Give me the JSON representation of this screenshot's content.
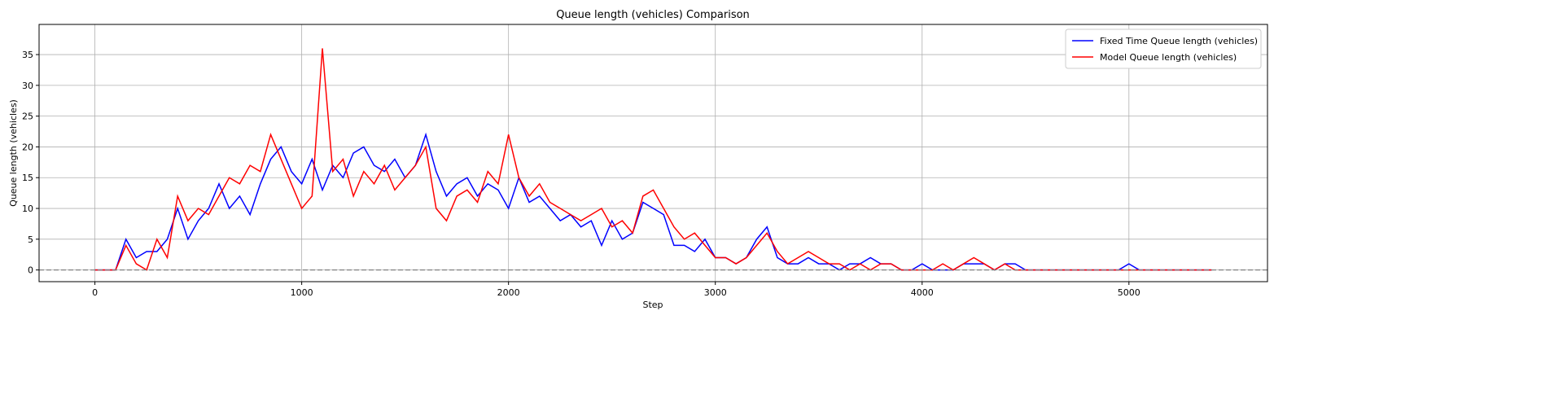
{
  "chart_data": {
    "type": "line",
    "title": "Queue length (vehicles) Comparison",
    "xlabel": "Step",
    "ylabel": "Queue length (vehicles)",
    "x": [
      0,
      50,
      100,
      150,
      200,
      250,
      300,
      350,
      400,
      450,
      500,
      550,
      600,
      650,
      700,
      750,
      800,
      850,
      900,
      950,
      1000,
      1050,
      1100,
      1150,
      1200,
      1250,
      1300,
      1350,
      1400,
      1450,
      1500,
      1550,
      1600,
      1650,
      1700,
      1750,
      1800,
      1850,
      1900,
      1950,
      2000,
      2050,
      2100,
      2150,
      2200,
      2250,
      2300,
      2350,
      2400,
      2450,
      2500,
      2550,
      2600,
      2650,
      2700,
      2750,
      2800,
      2850,
      2900,
      2950,
      3000,
      3050,
      3100,
      3150,
      3200,
      3250,
      3300,
      3350,
      3400,
      3450,
      3500,
      3550,
      3600,
      3650,
      3700,
      3750,
      3800,
      3850,
      3900,
      3950,
      4000,
      4050,
      4100,
      4150,
      4200,
      4250,
      4300,
      4350,
      4400,
      4450,
      4500,
      4550,
      4600,
      4650,
      4700,
      4750,
      4800,
      4850,
      4900,
      4950,
      5000,
      5050,
      5100,
      5150,
      5200,
      5250,
      5300,
      5350,
      5400
    ],
    "series": [
      {
        "name": "Fixed Time Queue length (vehicles)",
        "color": "#0000ff",
        "values": [
          0,
          0,
          0,
          5,
          2,
          3,
          3,
          5,
          10,
          5,
          8,
          10,
          14,
          10,
          12,
          9,
          14,
          18,
          20,
          16,
          14,
          18,
          13,
          17,
          15,
          19,
          20,
          17,
          16,
          18,
          15,
          17,
          22,
          16,
          12,
          14,
          15,
          12,
          14,
          13,
          10,
          15,
          11,
          12,
          10,
          8,
          9,
          7,
          8,
          4,
          8,
          5,
          6,
          11,
          10,
          9,
          4,
          4,
          3,
          5,
          2,
          2,
          1,
          2,
          5,
          7,
          2,
          1,
          1,
          2,
          1,
          1,
          0,
          1,
          1,
          2,
          1,
          1,
          0,
          0,
          1,
          0,
          0,
          0,
          1,
          1,
          1,
          0,
          1,
          1,
          0,
          0,
          0,
          0,
          0,
          0,
          0,
          0,
          0,
          0,
          1,
          0,
          0,
          0,
          0,
          0,
          0,
          0,
          0
        ]
      },
      {
        "name": "Model Queue length (vehicles)",
        "color": "#ff0000",
        "values": [
          0,
          0,
          0,
          4,
          1,
          0,
          5,
          2,
          12,
          8,
          10,
          9,
          12,
          15,
          14,
          17,
          16,
          22,
          18,
          14,
          10,
          12,
          36,
          16,
          18,
          12,
          16,
          14,
          17,
          13,
          15,
          17,
          20,
          10,
          8,
          12,
          13,
          11,
          16,
          14,
          22,
          15,
          12,
          14,
          11,
          10,
          9,
          8,
          9,
          10,
          7,
          8,
          6,
          12,
          13,
          10,
          7,
          5,
          6,
          4,
          2,
          2,
          1,
          2,
          4,
          6,
          3,
          1,
          2,
          3,
          2,
          1,
          1,
          0,
          1,
          0,
          1,
          1,
          0,
          0,
          0,
          0,
          1,
          0,
          1,
          2,
          1,
          0,
          1,
          0,
          0,
          0,
          0,
          0,
          0,
          0,
          0,
          0,
          0,
          0,
          0,
          0,
          0,
          0,
          0,
          0,
          0,
          0,
          0
        ]
      }
    ],
    "reference_line": {
      "y": 0,
      "color": "#808080"
    },
    "xlim": [
      -270,
      5670
    ],
    "ylim": [
      -1.9,
      39.9
    ],
    "xticks": [
      0,
      1000,
      2000,
      3000,
      4000,
      5000
    ],
    "yticks": [
      0,
      5,
      10,
      15,
      20,
      25,
      30,
      35
    ],
    "grid": true,
    "legend": "upper right"
  }
}
